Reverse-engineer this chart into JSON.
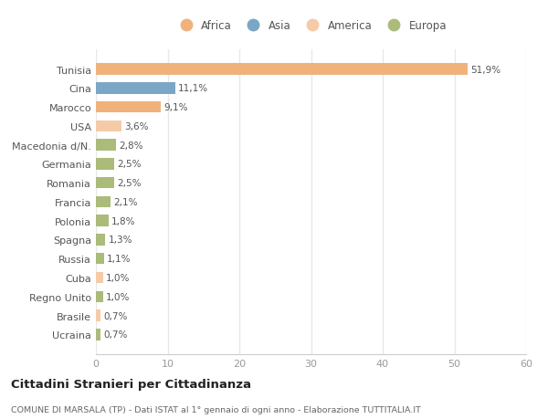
{
  "countries": [
    "Tunisia",
    "Cina",
    "Marocco",
    "USA",
    "Macedonia d/N.",
    "Germania",
    "Romania",
    "Francia",
    "Polonia",
    "Spagna",
    "Russia",
    "Cuba",
    "Regno Unito",
    "Brasile",
    "Ucraina"
  ],
  "values": [
    51.9,
    11.1,
    9.1,
    3.6,
    2.8,
    2.5,
    2.5,
    2.1,
    1.8,
    1.3,
    1.1,
    1.0,
    1.0,
    0.7,
    0.7
  ],
  "labels": [
    "51,9%",
    "11,1%",
    "9,1%",
    "3,6%",
    "2,8%",
    "2,5%",
    "2,5%",
    "2,1%",
    "1,8%",
    "1,3%",
    "1,1%",
    "1,0%",
    "1,0%",
    "0,7%",
    "0,7%"
  ],
  "colors": [
    "#F0B27A",
    "#7BA7C7",
    "#F0B27A",
    "#F5CBA7",
    "#AABB7A",
    "#AABB7A",
    "#AABB7A",
    "#AABB7A",
    "#AABB7A",
    "#AABB7A",
    "#AABB7A",
    "#F5CBA7",
    "#AABB7A",
    "#F5CBA7",
    "#AABB7A"
  ],
  "legend_labels": [
    "Africa",
    "Asia",
    "America",
    "Europa"
  ],
  "legend_colors": [
    "#F0B27A",
    "#7BA7C7",
    "#F5CBA7",
    "#AABB7A"
  ],
  "title": "Cittadini Stranieri per Cittadinanza",
  "subtitle": "COMUNE DI MARSALA (TP) - Dati ISTAT al 1° gennaio di ogni anno - Elaborazione TUTTITALIA.IT",
  "xlim": [
    0,
    60
  ],
  "xticks": [
    0,
    10,
    20,
    30,
    40,
    50,
    60
  ],
  "background_color": "#ffffff",
  "grid_color": "#e8e8e8"
}
